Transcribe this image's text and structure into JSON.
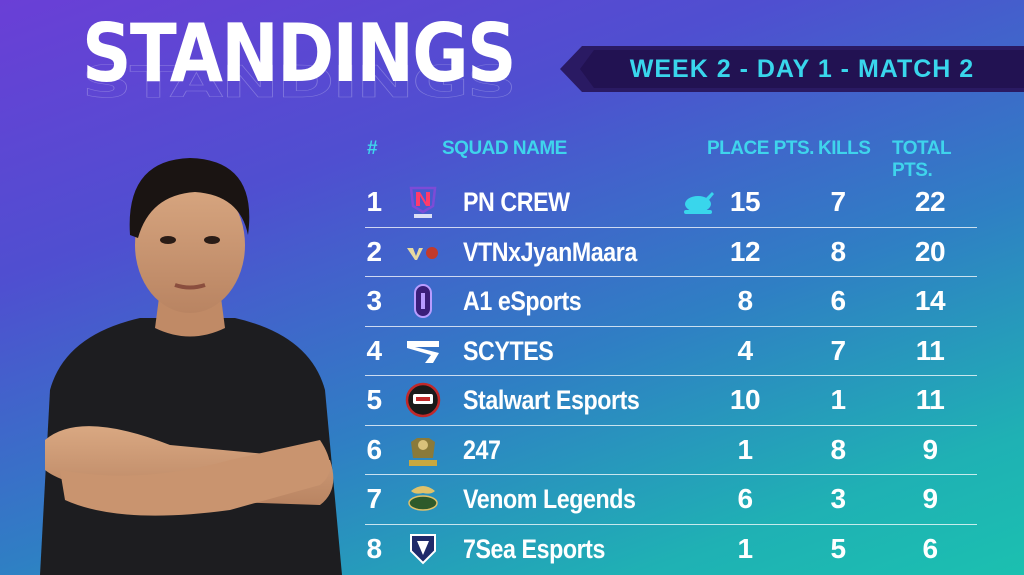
{
  "title": "STANDINGS",
  "banner": "WEEK 2 - DAY 1 - MATCH 2",
  "headers": {
    "rank": "#",
    "squad": "SQUAD NAME",
    "place": "PLACE PTS.",
    "kills": "KILLS",
    "total": "TOTAL PTS."
  },
  "rows": [
    {
      "rank": "1",
      "name": "PN CREW",
      "place": "15",
      "kills": "7",
      "total": "22",
      "logo": "pn-crew-logo",
      "chicken": true
    },
    {
      "rank": "2",
      "name": "VTNxJyanMaara",
      "place": "12",
      "kills": "8",
      "total": "20",
      "logo": "vtn-logo"
    },
    {
      "rank": "3",
      "name": "A1 eSports",
      "place": "8",
      "kills": "6",
      "total": "14",
      "logo": "a1-logo"
    },
    {
      "rank": "4",
      "name": "SCYTES",
      "place": "4",
      "kills": "7",
      "total": "11",
      "logo": "scytes-logo"
    },
    {
      "rank": "5",
      "name": "Stalwart Esports",
      "place": "10",
      "kills": "1",
      "total": "11",
      "logo": "stalwart-logo"
    },
    {
      "rank": "6",
      "name": "247",
      "place": "1",
      "kills": "8",
      "total": "9",
      "logo": "247-logo"
    },
    {
      "rank": "7",
      "name": "Venom Legends",
      "place": "6",
      "kills": "3",
      "total": "9",
      "logo": "venom-logo"
    },
    {
      "rank": "8",
      "name": "7Sea Esports",
      "place": "1",
      "kills": "5",
      "total": "6",
      "logo": "7sea-logo"
    }
  ],
  "colors": {
    "accent": "#3fd4ec",
    "banner_bg": "#221252"
  }
}
